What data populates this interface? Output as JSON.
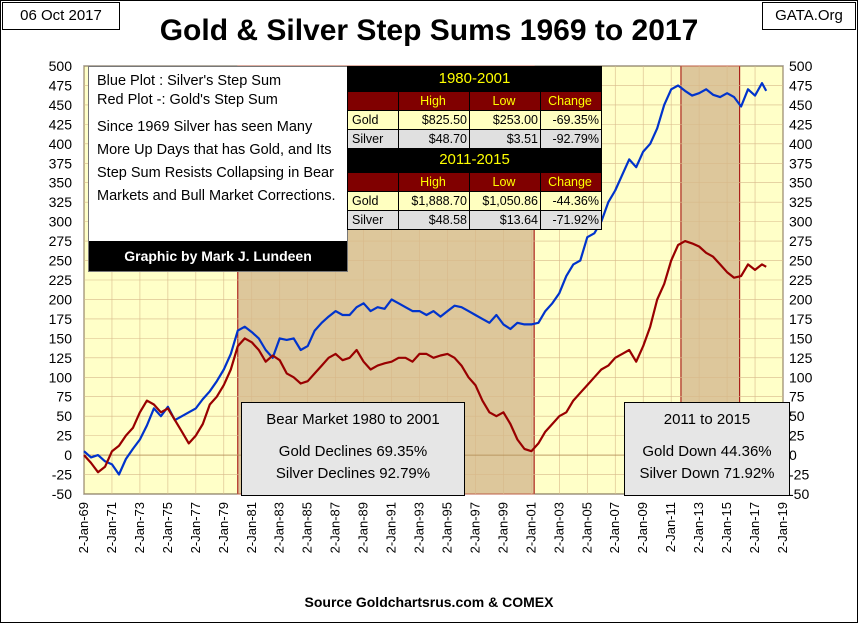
{
  "header": {
    "date": "06 Oct 2017",
    "site": "GATA.Org"
  },
  "chart_data": {
    "type": "line",
    "title": "Gold & Silver Step Sums 1969 to 2017",
    "source": "Source Goldchartsrus.com & COMEX",
    "ylim": [
      -50,
      500
    ],
    "y_ticks": [
      -50,
      -25,
      0,
      25,
      50,
      75,
      100,
      125,
      150,
      175,
      200,
      225,
      250,
      275,
      300,
      325,
      350,
      375,
      400,
      425,
      450,
      475,
      500
    ],
    "xlim": [
      1969,
      2019
    ],
    "x_ticks": [
      {
        "year": 1969,
        "label": "2-Jan-69"
      },
      {
        "year": 1971,
        "label": "2-Jan-71"
      },
      {
        "year": 1973,
        "label": "2-Jan-73"
      },
      {
        "year": 1975,
        "label": "2-Jan-75"
      },
      {
        "year": 1977,
        "label": "2-Jan-77"
      },
      {
        "year": 1979,
        "label": "2-Jan-79"
      },
      {
        "year": 1981,
        "label": "2-Jan-81"
      },
      {
        "year": 1983,
        "label": "2-Jan-83"
      },
      {
        "year": 1985,
        "label": "2-Jan-85"
      },
      {
        "year": 1987,
        "label": "2-Jan-87"
      },
      {
        "year": 1989,
        "label": "2-Jan-89"
      },
      {
        "year": 1991,
        "label": "2-Jan-91"
      },
      {
        "year": 1993,
        "label": "2-Jan-93"
      },
      {
        "year": 1995,
        "label": "2-Jan-95"
      },
      {
        "year": 1997,
        "label": "2-Jan-97"
      },
      {
        "year": 1999,
        "label": "2-Jan-99"
      },
      {
        "year": 2001,
        "label": "2-Jan-01"
      },
      {
        "year": 2003,
        "label": "2-Jan-03"
      },
      {
        "year": 2005,
        "label": "2-Jan-05"
      },
      {
        "year": 2007,
        "label": "2-Jan-07"
      },
      {
        "year": 2009,
        "label": "2-Jan-09"
      },
      {
        "year": 2011,
        "label": "2-Jan-11"
      },
      {
        "year": 2013,
        "label": "2-Jan-13"
      },
      {
        "year": 2015,
        "label": "2-Jan-15"
      },
      {
        "year": 2017,
        "label": "2-Jan-17"
      },
      {
        "year": 2019,
        "label": "2-Jan-19"
      }
    ],
    "grid": true,
    "shaded_periods": [
      {
        "start": 1980.0,
        "end": 2001.2
      },
      {
        "start": 2011.7,
        "end": 2015.9
      }
    ],
    "series": [
      {
        "id": "silver",
        "color": "#0033cc",
        "x": [
          1969.0,
          1969.5,
          1970.0,
          1970.5,
          1971.0,
          1971.5,
          1972.0,
          1972.5,
          1973.0,
          1973.5,
          1974.0,
          1974.5,
          1975.0,
          1975.5,
          1976.0,
          1976.5,
          1977.0,
          1977.5,
          1978.0,
          1978.5,
          1979.0,
          1979.5,
          1980.0,
          1980.5,
          1981.0,
          1981.5,
          1982.0,
          1982.5,
          1983.0,
          1983.5,
          1984.0,
          1984.5,
          1985.0,
          1985.5,
          1986.0,
          1986.5,
          1987.0,
          1987.5,
          1988.0,
          1988.5,
          1989.0,
          1989.5,
          1990.0,
          1990.5,
          1991.0,
          1991.5,
          1992.0,
          1992.5,
          1993.0,
          1993.5,
          1994.0,
          1994.5,
          1995.0,
          1995.5,
          1996.0,
          1996.5,
          1997.0,
          1997.5,
          1998.0,
          1998.5,
          1999.0,
          1999.5,
          2000.0,
          2000.5,
          2001.0,
          2001.5,
          2002.0,
          2002.5,
          2003.0,
          2003.5,
          2004.0,
          2004.5,
          2005.0,
          2005.5,
          2006.0,
          2006.5,
          2007.0,
          2007.5,
          2008.0,
          2008.5,
          2009.0,
          2009.5,
          2010.0,
          2010.5,
          2011.0,
          2011.5,
          2012.0,
          2012.5,
          2013.0,
          2013.5,
          2014.0,
          2014.5,
          2015.0,
          2015.5,
          2016.0,
          2016.5,
          2017.0,
          2017.5,
          2017.8
        ],
        "values": [
          5,
          -3,
          0,
          -8,
          -12,
          -25,
          -5,
          8,
          20,
          38,
          60,
          50,
          62,
          45,
          50,
          55,
          60,
          72,
          82,
          95,
          110,
          130,
          160,
          165,
          158,
          150,
          135,
          125,
          150,
          148,
          150,
          135,
          140,
          160,
          170,
          178,
          185,
          180,
          180,
          190,
          195,
          185,
          190,
          188,
          200,
          195,
          190,
          185,
          185,
          180,
          185,
          178,
          185,
          192,
          190,
          185,
          180,
          175,
          170,
          180,
          168,
          162,
          170,
          168,
          168,
          170,
          185,
          195,
          208,
          230,
          245,
          250,
          280,
          285,
          300,
          325,
          340,
          360,
          380,
          370,
          390,
          400,
          420,
          450,
          470,
          475,
          468,
          462,
          465,
          470,
          463,
          460,
          465,
          460,
          448,
          470,
          462,
          478,
          468
        ]
      },
      {
        "id": "gold",
        "color": "#990000",
        "x": [
          1969.0,
          1969.5,
          1970.0,
          1970.5,
          1971.0,
          1971.5,
          1972.0,
          1972.5,
          1973.0,
          1973.5,
          1974.0,
          1974.5,
          1975.0,
          1975.5,
          1976.0,
          1976.5,
          1977.0,
          1977.5,
          1978.0,
          1978.5,
          1979.0,
          1979.5,
          1980.0,
          1980.5,
          1981.0,
          1981.5,
          1982.0,
          1982.5,
          1983.0,
          1983.5,
          1984.0,
          1984.5,
          1985.0,
          1985.5,
          1986.0,
          1986.5,
          1987.0,
          1987.5,
          1988.0,
          1988.5,
          1989.0,
          1989.5,
          1990.0,
          1990.5,
          1991.0,
          1991.5,
          1992.0,
          1992.5,
          1993.0,
          1993.5,
          1994.0,
          1994.5,
          1995.0,
          1995.5,
          1996.0,
          1996.5,
          1997.0,
          1997.5,
          1998.0,
          1998.5,
          1999.0,
          1999.5,
          2000.0,
          2000.5,
          2001.0,
          2001.5,
          2002.0,
          2002.5,
          2003.0,
          2003.5,
          2004.0,
          2004.5,
          2005.0,
          2005.5,
          2006.0,
          2006.5,
          2007.0,
          2007.5,
          2008.0,
          2008.5,
          2009.0,
          2009.5,
          2010.0,
          2010.5,
          2011.0,
          2011.5,
          2012.0,
          2012.5,
          2013.0,
          2013.5,
          2014.0,
          2014.5,
          2015.0,
          2015.5,
          2016.0,
          2016.5,
          2017.0,
          2017.5,
          2017.8
        ],
        "values": [
          0,
          -10,
          -22,
          -15,
          5,
          12,
          25,
          35,
          55,
          70,
          65,
          55,
          60,
          45,
          30,
          15,
          25,
          40,
          65,
          75,
          90,
          110,
          140,
          150,
          145,
          135,
          120,
          128,
          122,
          105,
          100,
          92,
          95,
          105,
          115,
          125,
          130,
          122,
          125,
          135,
          120,
          110,
          115,
          118,
          120,
          125,
          125,
          120,
          130,
          130,
          125,
          128,
          130,
          125,
          115,
          100,
          90,
          70,
          55,
          50,
          55,
          40,
          20,
          8,
          5,
          15,
          30,
          40,
          50,
          55,
          70,
          80,
          90,
          100,
          110,
          115,
          125,
          130,
          135,
          120,
          140,
          165,
          200,
          220,
          250,
          270,
          275,
          272,
          268,
          260,
          255,
          245,
          235,
          228,
          230,
          245,
          238,
          245,
          242
        ]
      }
    ]
  },
  "note": {
    "line1": "Blue Plot :  Silver's Step Sum",
    "line2": "Red Plot -:  Gold's Step Sum",
    "paragraph": "Since 1969 Silver has seen Many More Up Days that has Gold, and Its Step Sum Resists Collapsing in Bear Markets and Bull Market Corrections.",
    "credit": "Graphic  by  Mark  J.  Lundeen"
  },
  "tables": [
    {
      "title": "1980-2001",
      "headers": [
        "",
        "High",
        "Low",
        "Change"
      ],
      "rows": [
        [
          "Gold",
          "$825.50",
          "$253.00",
          "-69.35%"
        ],
        [
          "Silver",
          "$48.70",
          "$3.51",
          "-92.79%"
        ]
      ]
    },
    {
      "title": "2011-2015",
      "headers": [
        "",
        "High",
        "Low",
        "Change"
      ],
      "rows": [
        [
          "Gold",
          "$1,888.70",
          "$1,050.86",
          "-44.36%"
        ],
        [
          "Silver",
          "$48.58",
          "$13.64",
          "-71.92%"
        ]
      ]
    }
  ],
  "annotations": {
    "bear": {
      "title": "Bear Market 1980 to 2001",
      "line1": "Gold Declines 69.35%",
      "line2": "Silver Declines 92.79%"
    },
    "recent": {
      "title": "2011 to 2015",
      "line1": "Gold Down 44.36%",
      "line2": "Silver Down 71.92%"
    }
  },
  "colors": {
    "plot_bg": "#ffffc8",
    "shade": "#d2b48c",
    "silver": "#0033cc",
    "gold": "#990000"
  }
}
